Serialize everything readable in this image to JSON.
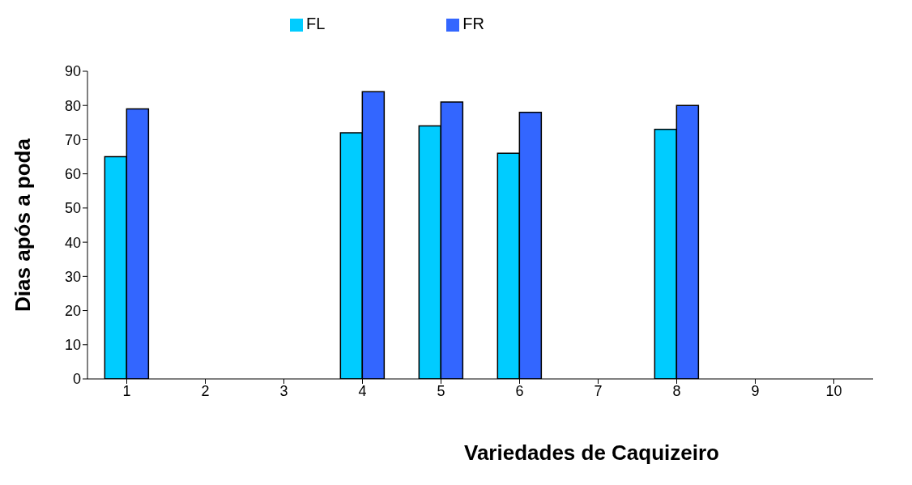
{
  "chart_data": {
    "type": "bar",
    "xlabel": "Variedades de Caquizeiro",
    "ylabel": "Dias após a poda",
    "categories": [
      "1",
      "2",
      "3",
      "4",
      "5",
      "6",
      "7",
      "8",
      "9",
      "10"
    ],
    "series": [
      {
        "name": "FL",
        "color": "#00ccff",
        "values": [
          65,
          0,
          0,
          72,
          74,
          66,
          0,
          73,
          0,
          0
        ]
      },
      {
        "name": "FR",
        "color": "#3366ff",
        "values": [
          79,
          0,
          0,
          84,
          81,
          78,
          0,
          80,
          0,
          0
        ]
      }
    ],
    "ylim": [
      0,
      90
    ],
    "yticks": [
      0,
      10,
      20,
      30,
      40,
      50,
      60,
      70,
      80,
      90
    ],
    "grid": false,
    "legend": "top"
  }
}
